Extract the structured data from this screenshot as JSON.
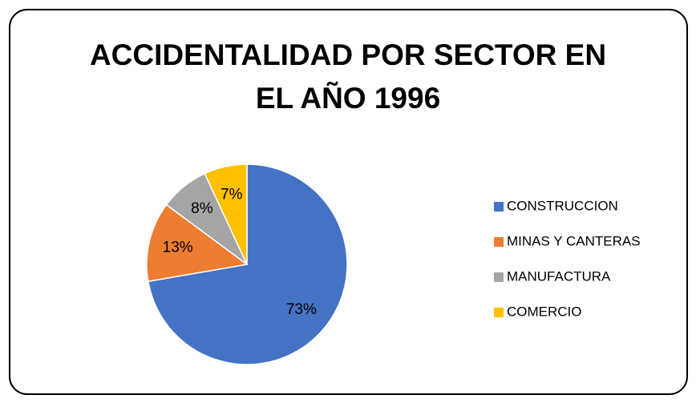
{
  "chart_data": {
    "type": "pie",
    "title": "ACCIDENTALIDAD POR SECTOR EN EL AÑO 1996",
    "categories": [
      "CONSTRUCCION",
      "MINAS Y CANTERAS",
      "MANUFACTURA",
      "COMERCIO"
    ],
    "values": [
      73,
      13,
      8,
      7
    ],
    "value_labels": [
      "73%",
      "13%",
      "8%",
      "7%"
    ],
    "colors": [
      "#4472c4",
      "#ed7d31",
      "#a5a5a5",
      "#ffc000"
    ],
    "legend": "right"
  }
}
